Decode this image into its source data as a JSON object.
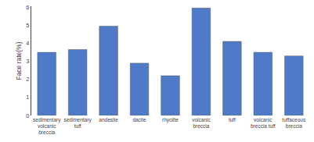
{
  "chart_data": {
    "type": "bar",
    "categories": [
      "sedimentary\nvolcanic\nbreccia",
      "sedimentary\ntuff",
      "andesite",
      "dacite",
      "rhyolite",
      "volcanic\nbreccia",
      "tuff",
      "volcanic\nbreccia tuff",
      "tuffaceous\nbreccia"
    ],
    "values": [
      3.5,
      3.65,
      4.95,
      2.9,
      2.2,
      5.95,
      4.1,
      3.5,
      3.3
    ],
    "color": "#4F7AC7",
    "ylabel": "Face rate(%)",
    "ylim": [
      0,
      6.05
    ],
    "yticks": [
      0,
      1,
      2,
      3,
      4,
      5,
      6
    ],
    "grid": false
  }
}
